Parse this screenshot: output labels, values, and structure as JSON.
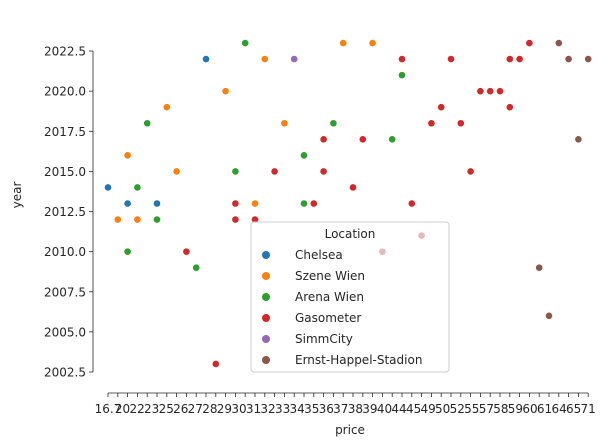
{
  "chart_data": {
    "type": "scatter",
    "title": "",
    "xlabel": "price",
    "ylabel": "year",
    "x_tick_labels": [
      "16.7",
      "20",
      "22",
      "23",
      "25",
      "26",
      "27",
      "28",
      "29",
      "30",
      "31",
      "32",
      "33",
      "34",
      "35",
      "36",
      "37",
      "38",
      "39",
      "40",
      "44",
      "45",
      "49",
      "50",
      "52",
      "55",
      "57",
      "58",
      "59",
      "60",
      "61",
      "64",
      "65",
      "71"
    ],
    "ylim": [
      2002.5,
      2023.5
    ],
    "y_ticks": [
      "2002.5",
      "2005.0",
      "2007.5",
      "2010.0",
      "2012.5",
      "2015.0",
      "2017.5",
      "2020.0",
      "2022.5"
    ],
    "grid": false,
    "legend": {
      "title": "Location",
      "placement": "lower center",
      "entries": [
        {
          "name": "Chelsea",
          "color": "#1f77b4"
        },
        {
          "name": "Szene Wien",
          "color": "#ff7f0e"
        },
        {
          "name": "Arena Wien",
          "color": "#2ca02c"
        },
        {
          "name": "Gasometer",
          "color": "#d62728"
        },
        {
          "name": "SimmCity",
          "color": "#9467bd"
        },
        {
          "name": "Ernst-Happel-Stadion",
          "color": "#8c564b"
        }
      ]
    },
    "series": [
      {
        "name": "Chelsea",
        "color": "#1f77b4",
        "points": [
          [
            0,
            2014
          ],
          [
            2,
            2013
          ],
          [
            5,
            2013
          ],
          [
            10,
            2022
          ]
        ]
      },
      {
        "name": "Szene Wien",
        "color": "#ff7f0e",
        "points": [
          [
            1,
            2012
          ],
          [
            2,
            2016
          ],
          [
            3,
            2012
          ],
          [
            6,
            2019
          ],
          [
            7,
            2015
          ],
          [
            12,
            2020
          ],
          [
            15,
            2013
          ],
          [
            16,
            2022
          ],
          [
            18,
            2018
          ],
          [
            24,
            2023
          ],
          [
            27,
            2023
          ]
        ]
      },
      {
        "name": "Arena Wien",
        "color": "#2ca02c",
        "points": [
          [
            2,
            2010
          ],
          [
            3,
            2014
          ],
          [
            4,
            2018
          ],
          [
            5,
            2012
          ],
          [
            9,
            2009
          ],
          [
            13,
            2015
          ],
          [
            14,
            2023
          ],
          [
            20,
            2016
          ],
          [
            20,
            2013
          ],
          [
            23,
            2018
          ],
          [
            29,
            2017
          ],
          [
            30,
            2021
          ]
        ]
      },
      {
        "name": "Gasometer",
        "color": "#d62728",
        "points": [
          [
            8,
            2010
          ],
          [
            11,
            2003
          ],
          [
            13,
            2013
          ],
          [
            13,
            2012
          ],
          [
            15,
            2012
          ],
          [
            17,
            2015
          ],
          [
            21,
            2013
          ],
          [
            22,
            2017
          ],
          [
            22,
            2015
          ],
          [
            25,
            2014
          ],
          [
            26,
            2017
          ],
          [
            30,
            2022
          ],
          [
            31,
            2013
          ],
          [
            33,
            2018
          ],
          [
            34,
            2019
          ],
          [
            35,
            2022
          ],
          [
            36,
            2018
          ],
          [
            37,
            2015
          ],
          [
            38,
            2020
          ],
          [
            39,
            2020
          ],
          [
            40,
            2020
          ],
          [
            41,
            2022
          ],
          [
            41,
            2019
          ],
          [
            42,
            2022
          ],
          [
            43,
            2023
          ]
        ]
      },
      {
        "name": "SimmCity",
        "color": "#9467bd",
        "points": [
          [
            19,
            2022
          ]
        ]
      },
      {
        "name": "Ernst-Happel-Stadion",
        "color": "#8c564b",
        "points": [
          [
            44,
            2009
          ],
          [
            45,
            2006
          ],
          [
            46,
            2023
          ],
          [
            47,
            2022
          ],
          [
            48,
            2017
          ],
          [
            49,
            2022
          ]
        ]
      }
    ],
    "faded_points": [
      [
        28,
        2010
      ],
      [
        32,
        2011
      ]
    ]
  }
}
